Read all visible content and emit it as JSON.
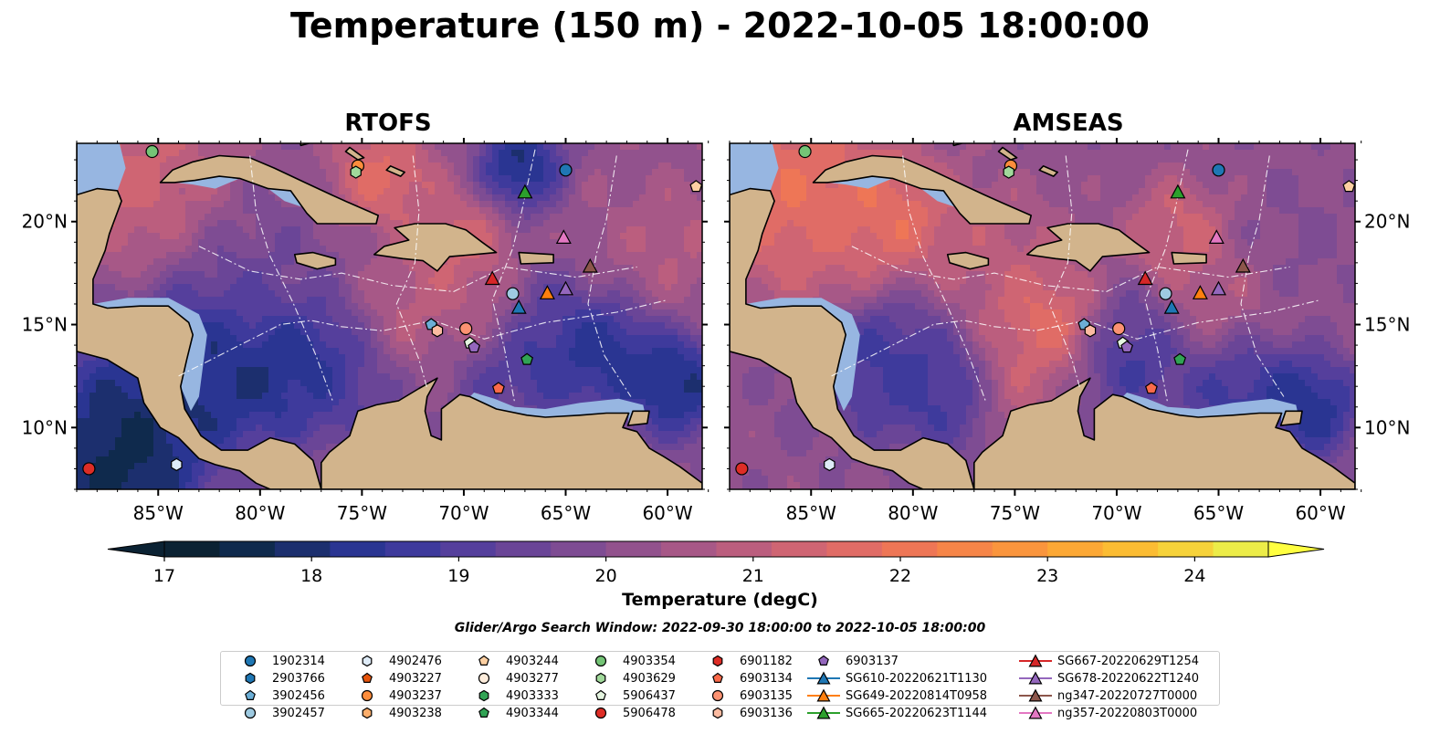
{
  "title": "Temperature (150 m) - 2022-10-05 18:00:00",
  "panels": [
    {
      "title": "RTOFS"
    },
    {
      "title": "AMSEAS"
    }
  ],
  "colorbar": {
    "label": "Temperature (degC)",
    "ticks": [
      "17",
      "18",
      "19",
      "20",
      "21",
      "22",
      "23",
      "24"
    ],
    "min": 17,
    "max": 24.5,
    "step": 0.5,
    "extend": "both",
    "colors": [
      "#0b2233",
      "#0f2a4d",
      "#1c2f6e",
      "#2a3592",
      "#3e3a9c",
      "#553f9c",
      "#6a4597",
      "#7e4c93",
      "#92528d",
      "#a75887",
      "#bb5e7e",
      "#cf6573",
      "#e06c66",
      "#ee7656",
      "#f68548",
      "#fa953d",
      "#fca835",
      "#fbbc33",
      "#f6d23a",
      "#ecec48"
    ]
  },
  "search_window": "Glider/Argo Search Window: 2022-09-30 18:00:00 to 2022-10-05 18:00:00",
  "chart_data": [
    {
      "type": "map",
      "name": "RTOFS",
      "xlabel": "",
      "ylabel": "",
      "x_ticks": [
        "85°W",
        "80°W",
        "75°W",
        "70°W",
        "65°W",
        "60°W"
      ],
      "y_ticks": [
        "20°N",
        "15°N",
        "10°N"
      ],
      "xlim": [
        -89,
        -58.3
      ],
      "ylim": [
        7.0,
        23.8
      ],
      "units": "degC"
    },
    {
      "type": "map",
      "name": "AMSEAS",
      "xlabel": "",
      "ylabel": "",
      "x_ticks": [
        "85°W",
        "80°W",
        "75°W",
        "70°W",
        "65°W",
        "60°W"
      ],
      "y_ticks": [
        "20°N",
        "15°N",
        "10°N"
      ],
      "xlim": [
        -89,
        -58.3
      ],
      "ylim": [
        7.0,
        23.8
      ],
      "units": "degC"
    }
  ],
  "platforms": [
    {
      "id": "1902314",
      "marker": "circle",
      "color": "#1f77b4",
      "lon": -65.0,
      "lat": 22.5
    },
    {
      "id": "2903766",
      "marker": "hexagon",
      "color": "#1f77b4",
      "lon": null,
      "lat": null
    },
    {
      "id": "3902456",
      "marker": "pentagon",
      "color": "#6baed6",
      "lon": -71.6,
      "lat": 15.0
    },
    {
      "id": "3902457",
      "marker": "circle",
      "color": "#9ecae1",
      "lon": -67.6,
      "lat": 16.5
    },
    {
      "id": "4902476",
      "marker": "hexagon",
      "color": "#deebf7",
      "lon": -84.1,
      "lat": 8.2
    },
    {
      "id": "4903227",
      "marker": "pentagon",
      "color": "#e6550d",
      "lon": null,
      "lat": null
    },
    {
      "id": "4903237",
      "marker": "circle",
      "color": "#fd8d3c",
      "lon": -75.2,
      "lat": 22.7
    },
    {
      "id": "4903238",
      "marker": "hexagon",
      "color": "#fdae6b",
      "lon": null,
      "lat": null
    },
    {
      "id": "4903244",
      "marker": "pentagon",
      "color": "#fdd0a2",
      "lon": -58.6,
      "lat": 21.7
    },
    {
      "id": "4903277",
      "marker": "circle",
      "color": "#feeddc",
      "lon": null,
      "lat": null
    },
    {
      "id": "4903333",
      "marker": "hexagon",
      "color": "#31a354",
      "lon": null,
      "lat": null
    },
    {
      "id": "4903344",
      "marker": "pentagon",
      "color": "#31a354",
      "lon": -66.9,
      "lat": 13.3
    },
    {
      "id": "4903354",
      "marker": "circle",
      "color": "#74c476",
      "lon": -85.3,
      "lat": 23.4
    },
    {
      "id": "4903629",
      "marker": "hexagon",
      "color": "#a1d99b",
      "lon": -75.3,
      "lat": 22.4
    },
    {
      "id": "5906437",
      "marker": "pentagon",
      "color": "#e5f5e0",
      "lon": -69.7,
      "lat": 14.1
    },
    {
      "id": "5906478",
      "marker": "circle",
      "color": "#de2d26",
      "lon": -88.4,
      "lat": 8.0
    },
    {
      "id": "6901182",
      "marker": "hexagon",
      "color": "#de2d26",
      "lon": null,
      "lat": null
    },
    {
      "id": "6903134",
      "marker": "pentagon",
      "color": "#fb6a4a",
      "lon": -68.3,
      "lat": 11.9
    },
    {
      "id": "6903135",
      "marker": "circle",
      "color": "#fc9272",
      "lon": -69.9,
      "lat": 14.8
    },
    {
      "id": "6903136",
      "marker": "hexagon",
      "color": "#fcbba1",
      "lon": -71.3,
      "lat": 14.7
    },
    {
      "id": "6903137",
      "marker": "pentagon",
      "color": "#9467bd",
      "lon": -69.5,
      "lat": 13.9
    },
    {
      "id": "SG610-20220621T1130",
      "marker": "triangle",
      "color": "#1f77b4",
      "lon": -67.3,
      "lat": 15.8
    },
    {
      "id": "SG649-20220814T0958",
      "marker": "triangle",
      "color": "#ff7f0e",
      "lon": -65.9,
      "lat": 16.5
    },
    {
      "id": "SG665-20220623T1144",
      "marker": "triangle",
      "color": "#2ca02c",
      "lon": -67.0,
      "lat": 21.4
    },
    {
      "id": "SG667-20220629T1254",
      "marker": "triangle",
      "color": "#d62728",
      "lon": -68.6,
      "lat": 17.2
    },
    {
      "id": "SG678-20220622T1240",
      "marker": "triangle",
      "color": "#9467bd",
      "lon": -65.0,
      "lat": 16.7
    },
    {
      "id": "ng347-20220727T0000",
      "marker": "triangle",
      "color": "#8c564b",
      "lon": -63.8,
      "lat": 17.8
    },
    {
      "id": "ng357-20220803T0000",
      "marker": "triangle",
      "color": "#e377c2",
      "lon": -65.1,
      "lat": 19.2
    }
  ]
}
